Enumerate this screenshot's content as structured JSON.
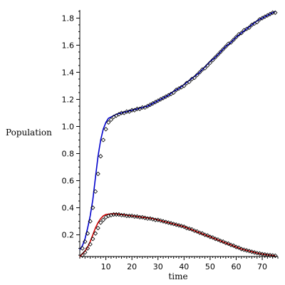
{
  "chart_data": {
    "type": "line",
    "title": "",
    "xlabel": "time",
    "ylabel": "Population",
    "xlim": [
      0,
      76
    ],
    "ylim": [
      0.04,
      1.86
    ],
    "x_ticks": [
      10,
      20,
      30,
      40,
      50,
      60,
      70
    ],
    "y_ticks": [
      0.2,
      0.4,
      0.6,
      0.8,
      1.0,
      1.2,
      1.4,
      1.6,
      1.8
    ],
    "x_tick_labels": [
      "10",
      "20",
      "30",
      "40",
      "50",
      "60",
      "70"
    ],
    "y_tick_labels": [
      "0.2",
      "0.4",
      "0.6",
      "0.8",
      "1.0",
      "1.2",
      "1.4",
      "1.6",
      "1.8"
    ],
    "grid": false,
    "series": [
      {
        "color": "#0000cc",
        "style": "line",
        "points": [
          [
            0,
            0.09
          ],
          [
            1,
            0.12
          ],
          [
            2,
            0.17
          ],
          [
            3,
            0.25
          ],
          [
            4,
            0.34
          ],
          [
            5,
            0.46
          ],
          [
            6,
            0.62
          ],
          [
            7,
            0.78
          ],
          [
            8,
            0.9
          ],
          [
            9,
            0.98
          ],
          [
            10,
            1.03
          ],
          [
            11,
            1.06
          ],
          [
            12,
            1.07
          ],
          [
            14,
            1.09
          ],
          [
            16,
            1.1
          ],
          [
            18,
            1.11
          ],
          [
            20,
            1.12
          ],
          [
            22,
            1.13
          ],
          [
            24,
            1.14
          ],
          [
            26,
            1.15
          ],
          [
            28,
            1.17
          ],
          [
            30,
            1.19
          ],
          [
            32,
            1.21
          ],
          [
            34,
            1.23
          ],
          [
            36,
            1.26
          ],
          [
            38,
            1.28
          ],
          [
            40,
            1.31
          ],
          [
            42,
            1.34
          ],
          [
            44,
            1.37
          ],
          [
            46,
            1.4
          ],
          [
            48,
            1.44
          ],
          [
            50,
            1.48
          ],
          [
            52,
            1.51
          ],
          [
            54,
            1.55
          ],
          [
            56,
            1.59
          ],
          [
            58,
            1.62
          ],
          [
            60,
            1.66
          ],
          [
            62,
            1.69
          ],
          [
            64,
            1.72
          ],
          [
            66,
            1.75
          ],
          [
            68,
            1.78
          ],
          [
            70,
            1.8
          ],
          [
            72,
            1.82
          ],
          [
            74,
            1.84
          ],
          [
            75,
            1.85
          ]
        ]
      },
      {
        "color": "#000000",
        "style": "markers",
        "marker": "diamond",
        "points": [
          [
            1,
            0.1
          ],
          [
            2,
            0.15
          ],
          [
            3,
            0.21
          ],
          [
            4,
            0.3
          ],
          [
            5,
            0.4
          ],
          [
            6,
            0.52
          ],
          [
            7,
            0.65
          ],
          [
            8,
            0.78
          ],
          [
            9,
            0.9
          ],
          [
            10,
            0.98
          ],
          [
            11,
            1.03
          ],
          [
            12,
            1.05
          ],
          [
            13,
            1.07
          ],
          [
            14,
            1.08
          ],
          [
            15,
            1.09
          ],
          [
            16,
            1.1
          ],
          [
            17,
            1.1
          ],
          [
            18,
            1.11
          ],
          [
            19,
            1.11
          ],
          [
            20,
            1.12
          ],
          [
            21,
            1.12
          ],
          [
            22,
            1.13
          ],
          [
            23,
            1.13
          ],
          [
            24,
            1.14
          ],
          [
            25,
            1.14
          ],
          [
            26,
            1.15
          ],
          [
            27,
            1.16
          ],
          [
            28,
            1.17
          ],
          [
            29,
            1.18
          ],
          [
            30,
            1.19
          ],
          [
            31,
            1.2
          ],
          [
            32,
            1.21
          ],
          [
            33,
            1.22
          ],
          [
            34,
            1.23
          ],
          [
            35,
            1.24
          ],
          [
            36,
            1.25
          ],
          [
            37,
            1.27
          ],
          [
            38,
            1.28
          ],
          [
            39,
            1.29
          ],
          [
            40,
            1.3
          ],
          [
            41,
            1.32
          ],
          [
            42,
            1.33
          ],
          [
            43,
            1.35
          ],
          [
            44,
            1.36
          ],
          [
            45,
            1.38
          ],
          [
            46,
            1.4
          ],
          [
            47,
            1.42
          ],
          [
            48,
            1.43
          ],
          [
            49,
            1.45
          ],
          [
            50,
            1.47
          ],
          [
            51,
            1.49
          ],
          [
            52,
            1.51
          ],
          [
            53,
            1.53
          ],
          [
            54,
            1.55
          ],
          [
            55,
            1.57
          ],
          [
            56,
            1.59
          ],
          [
            57,
            1.61
          ],
          [
            58,
            1.62
          ],
          [
            59,
            1.64
          ],
          [
            60,
            1.66
          ],
          [
            61,
            1.68
          ],
          [
            62,
            1.69
          ],
          [
            63,
            1.71
          ],
          [
            64,
            1.72
          ],
          [
            65,
            1.73
          ],
          [
            66,
            1.75
          ],
          [
            67,
            1.76
          ],
          [
            68,
            1.77
          ],
          [
            69,
            1.79
          ],
          [
            70,
            1.8
          ],
          [
            71,
            1.81
          ],
          [
            72,
            1.82
          ],
          [
            73,
            1.83
          ],
          [
            74,
            1.84
          ],
          [
            75,
            1.84
          ]
        ]
      },
      {
        "color": "#cc0000",
        "style": "line",
        "points": [
          [
            0,
            0.04
          ],
          [
            1,
            0.06
          ],
          [
            2,
            0.08
          ],
          [
            3,
            0.11
          ],
          [
            4,
            0.15
          ],
          [
            5,
            0.2
          ],
          [
            6,
            0.25
          ],
          [
            7,
            0.29
          ],
          [
            8,
            0.32
          ],
          [
            9,
            0.34
          ],
          [
            10,
            0.35
          ],
          [
            12,
            0.355
          ],
          [
            14,
            0.355
          ],
          [
            16,
            0.35
          ],
          [
            18,
            0.345
          ],
          [
            20,
            0.34
          ],
          [
            22,
            0.335
          ],
          [
            24,
            0.33
          ],
          [
            26,
            0.325
          ],
          [
            28,
            0.32
          ],
          [
            30,
            0.31
          ],
          [
            32,
            0.3
          ],
          [
            34,
            0.29
          ],
          [
            36,
            0.28
          ],
          [
            38,
            0.27
          ],
          [
            40,
            0.26
          ],
          [
            42,
            0.245
          ],
          [
            44,
            0.23
          ],
          [
            46,
            0.215
          ],
          [
            48,
            0.2
          ],
          [
            50,
            0.185
          ],
          [
            52,
            0.17
          ],
          [
            54,
            0.155
          ],
          [
            56,
            0.14
          ],
          [
            58,
            0.125
          ],
          [
            60,
            0.11
          ],
          [
            62,
            0.095
          ],
          [
            64,
            0.085
          ],
          [
            66,
            0.075
          ],
          [
            68,
            0.065
          ],
          [
            70,
            0.058
          ],
          [
            72,
            0.052
          ],
          [
            74,
            0.048
          ],
          [
            75,
            0.046
          ]
        ]
      },
      {
        "color": "#000000",
        "style": "markers",
        "marker": "diamond",
        "points": [
          [
            1,
            0.05
          ],
          [
            2,
            0.07
          ],
          [
            3,
            0.1
          ],
          [
            4,
            0.13
          ],
          [
            5,
            0.17
          ],
          [
            6,
            0.21
          ],
          [
            7,
            0.25
          ],
          [
            8,
            0.29
          ],
          [
            9,
            0.31
          ],
          [
            10,
            0.33
          ],
          [
            11,
            0.34
          ],
          [
            12,
            0.345
          ],
          [
            13,
            0.35
          ],
          [
            14,
            0.35
          ],
          [
            15,
            0.35
          ],
          [
            16,
            0.345
          ],
          [
            17,
            0.345
          ],
          [
            18,
            0.34
          ],
          [
            19,
            0.34
          ],
          [
            20,
            0.34
          ],
          [
            21,
            0.335
          ],
          [
            22,
            0.335
          ],
          [
            23,
            0.33
          ],
          [
            24,
            0.33
          ],
          [
            25,
            0.325
          ],
          [
            26,
            0.32
          ],
          [
            27,
            0.32
          ],
          [
            28,
            0.315
          ],
          [
            29,
            0.31
          ],
          [
            30,
            0.31
          ],
          [
            31,
            0.305
          ],
          [
            32,
            0.3
          ],
          [
            33,
            0.295
          ],
          [
            34,
            0.29
          ],
          [
            35,
            0.285
          ],
          [
            36,
            0.28
          ],
          [
            37,
            0.275
          ],
          [
            38,
            0.27
          ],
          [
            39,
            0.265
          ],
          [
            40,
            0.26
          ],
          [
            41,
            0.25
          ],
          [
            42,
            0.245
          ],
          [
            43,
            0.24
          ],
          [
            44,
            0.23
          ],
          [
            45,
            0.225
          ],
          [
            46,
            0.215
          ],
          [
            47,
            0.21
          ],
          [
            48,
            0.2
          ],
          [
            49,
            0.195
          ],
          [
            50,
            0.185
          ],
          [
            51,
            0.18
          ],
          [
            52,
            0.17
          ],
          [
            53,
            0.165
          ],
          [
            54,
            0.155
          ],
          [
            55,
            0.15
          ],
          [
            56,
            0.14
          ],
          [
            57,
            0.135
          ],
          [
            58,
            0.125
          ],
          [
            59,
            0.12
          ],
          [
            60,
            0.11
          ],
          [
            61,
            0.105
          ],
          [
            62,
            0.095
          ],
          [
            63,
            0.09
          ],
          [
            64,
            0.085
          ],
          [
            65,
            0.08
          ],
          [
            66,
            0.075
          ],
          [
            67,
            0.07
          ],
          [
            68,
            0.065
          ],
          [
            69,
            0.062
          ],
          [
            70,
            0.058
          ],
          [
            71,
            0.055
          ],
          [
            72,
            0.052
          ],
          [
            73,
            0.05
          ],
          [
            74,
            0.048
          ],
          [
            75,
            0.046
          ]
        ]
      }
    ]
  }
}
